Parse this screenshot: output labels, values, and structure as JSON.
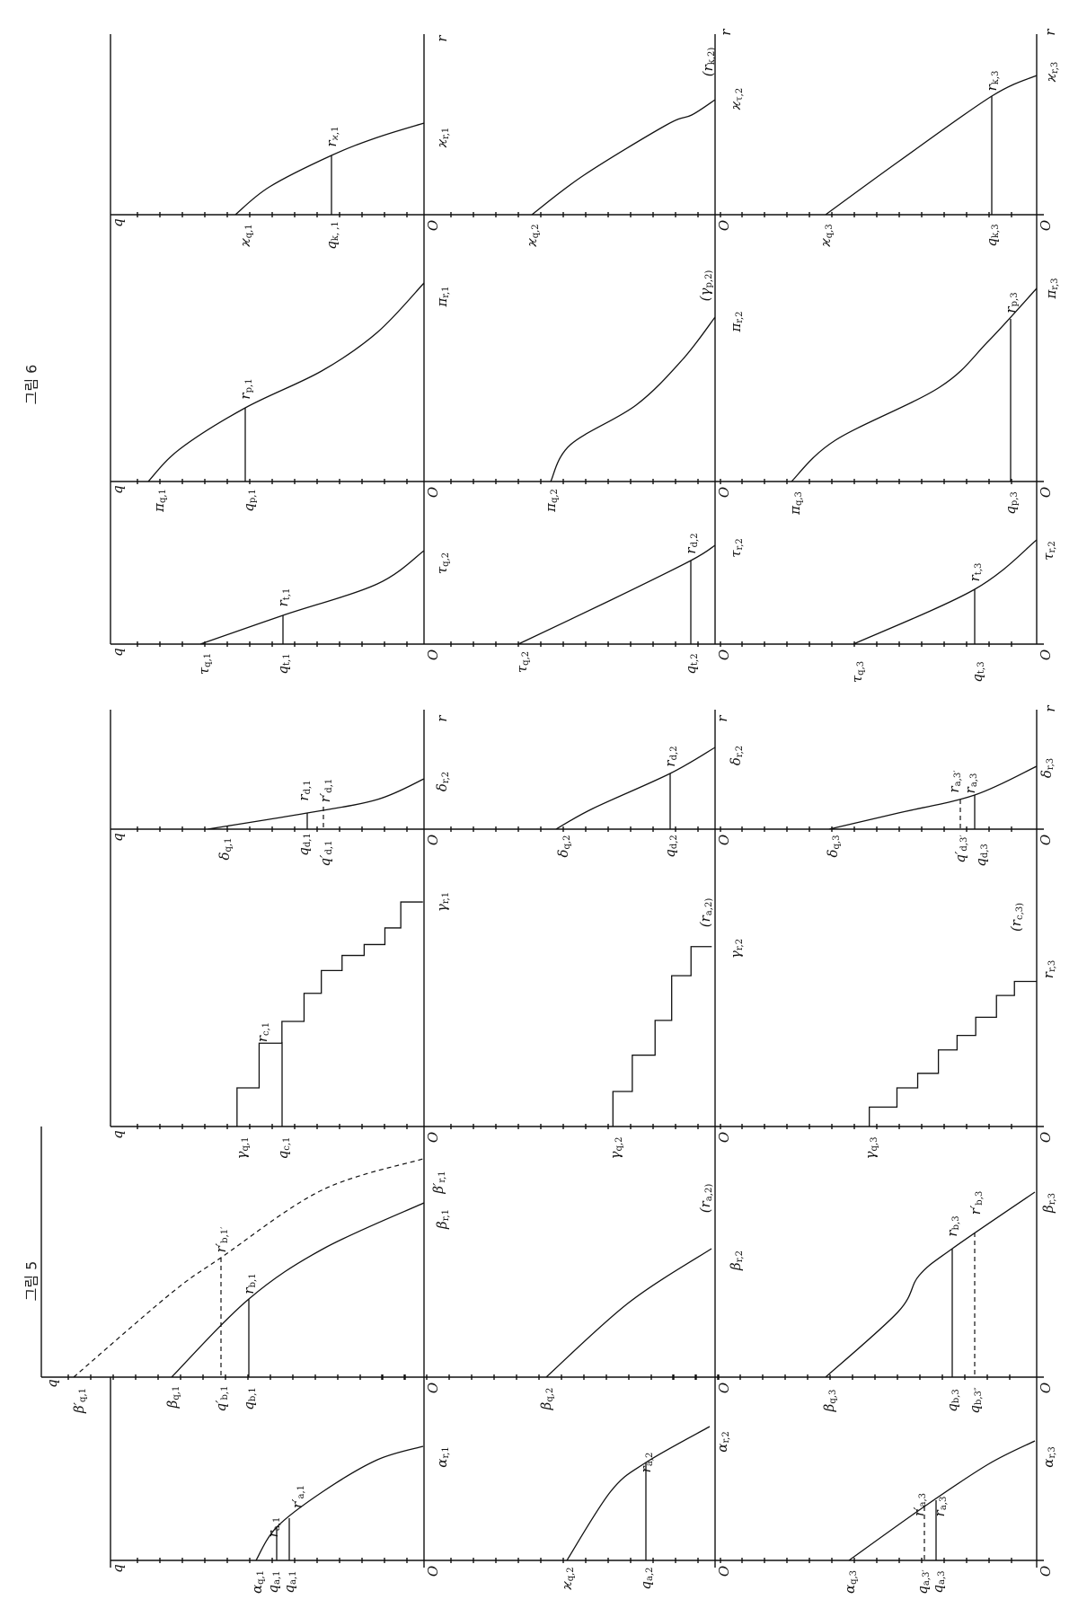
{
  "figures": {
    "fig5_title": "그림 5",
    "fig6_title": "그림 6"
  },
  "labels": {
    "q": [
      "q",
      ""
    ],
    "r": [
      "r",
      ""
    ],
    "o": [
      "O",
      ""
    ],
    "kq1": [
      "ϰ",
      "q,1"
    ],
    "qk1": [
      "q",
      "k, ,1"
    ],
    "rk1": [
      "r",
      "ϰ,1"
    ],
    "kr1": [
      "ϰ",
      "r,1"
    ],
    "kq2": [
      "ϰ",
      "q,2"
    ],
    "rk2": [
      "(r",
      "k,2)"
    ],
    "kt2": [
      "ϰ",
      "τ,2"
    ],
    "kq3": [
      "ϰ",
      "q,3"
    ],
    "qk3": [
      "q",
      "k,3"
    ],
    "rk3": [
      "r",
      "k,3"
    ],
    "kr3": [
      "ϰ",
      "r,3"
    ],
    "pq1": [
      "π",
      "q,1"
    ],
    "qp1": [
      "q",
      "p,1"
    ],
    "rp1": [
      "r",
      "p,1"
    ],
    "pr1": [
      "π",
      "r,1"
    ],
    "pq2": [
      "π",
      "q,2"
    ],
    "gp2": [
      "(γ",
      "p,2)"
    ],
    "pr2": [
      "π",
      "r,2"
    ],
    "pq3": [
      "π",
      "q,3"
    ],
    "qp3": [
      "q",
      "p,3"
    ],
    "rp3": [
      "r",
      "p,3"
    ],
    "pr3": [
      "π",
      "r,3"
    ],
    "tq1": [
      "τ",
      "q,1"
    ],
    "qt1": [
      "q",
      "t,1"
    ],
    "rt1": [
      "r",
      "t,1"
    ],
    "tq2b": [
      "τ",
      "q,2"
    ],
    "tq2": [
      "τ",
      "q,2"
    ],
    "qt2": [
      "q",
      "t,2"
    ],
    "rd2t": [
      "r",
      "d,2"
    ],
    "tr2": [
      "τ",
      "r,2"
    ],
    "tq3": [
      "τ",
      "q,3"
    ],
    "qt3": [
      "q",
      "t,3"
    ],
    "rt3": [
      "r",
      "t,3"
    ],
    "tr2b": [
      "τ",
      "r,2"
    ],
    "dq1": [
      "δ",
      "q,1"
    ],
    "qd1": [
      "q",
      "d,1"
    ],
    "qpd1": [
      "q′",
      "d,1"
    ],
    "rd1": [
      "r",
      "d,1"
    ],
    "rpd1": [
      "r′",
      "d,1"
    ],
    "dr2a": [
      "δ",
      "r,2"
    ],
    "dq2": [
      "δ",
      "q,2"
    ],
    "qd2": [
      "q",
      "d,2"
    ],
    "rd2": [
      "r",
      "d,2"
    ],
    "dr2": [
      "δ",
      "r,2"
    ],
    "dq3": [
      "δ",
      "q,3"
    ],
    "qpd3": [
      "q′",
      "d,3′"
    ],
    "qd3": [
      "q",
      "d,3"
    ],
    "ra3p": [
      "r",
      "a,3′"
    ],
    "ra3b": [
      "r",
      "a,3"
    ],
    "dr3": [
      "δ",
      "r,3"
    ],
    "gq1": [
      "γ",
      "q,1"
    ],
    "qc1": [
      "q",
      "c,1"
    ],
    "rc1": [
      "r",
      "c,1"
    ],
    "gr1": [
      "γ",
      "r,1"
    ],
    "gq2": [
      "γ",
      "q,2"
    ],
    "ra2g": [
      "(r",
      "a,2)"
    ],
    "gr2": [
      "γ",
      "r,2"
    ],
    "gq3": [
      "γ",
      "q,3"
    ],
    "rc3": [
      "(r",
      "c,3)"
    ],
    "rr3": [
      "r",
      "r,3"
    ],
    "bpq1": [
      "β′",
      "q,1"
    ],
    "bq1": [
      "β",
      "q,1"
    ],
    "qpb1": [
      "q′",
      "b,1"
    ],
    "qb1": [
      "q",
      "b,1"
    ],
    "rpb1": [
      "r′",
      "b,1′"
    ],
    "rb1": [
      "r",
      "b,1"
    ],
    "bpr1": [
      "β′",
      "r,1"
    ],
    "br1": [
      "β",
      "r,1"
    ],
    "bq2": [
      "β",
      "q,2"
    ],
    "ra2b": [
      "(r",
      "a,2)"
    ],
    "br2": [
      "β",
      "r,2"
    ],
    "bq3": [
      "β",
      "q,3"
    ],
    "qb3": [
      "q",
      "b,3"
    ],
    "qb3p": [
      "q",
      "b,3″"
    ],
    "rb3": [
      "r",
      "b,3"
    ],
    "rpb3": [
      "r′",
      "b,3"
    ],
    "br3": [
      "β",
      "r,3"
    ],
    "aq1": [
      "α",
      "q,1"
    ],
    "qa1": [
      "q",
      "a,1"
    ],
    "qa1b": [
      "q",
      "a,1"
    ],
    "ra1": [
      "r",
      "a,1"
    ],
    "rpa1": [
      "r′",
      "a,1"
    ],
    "ar1": [
      "α",
      "r,1"
    ],
    "kq2a": [
      "ϰ",
      "q,2"
    ],
    "qa2": [
      "q",
      "a,2"
    ],
    "ra2": [
      "r",
      "a,2"
    ],
    "ar2": [
      "α",
      "r,2"
    ],
    "aq3": [
      "α",
      "q,3"
    ],
    "qa3p": [
      "q",
      "a,3′"
    ],
    "qa3": [
      "q",
      "a,3"
    ],
    "rpa3": [
      "r′",
      "a,3"
    ],
    "ra3": [
      "r",
      "a,3"
    ],
    "ar3": [
      "α",
      "r,3"
    ]
  }
}
